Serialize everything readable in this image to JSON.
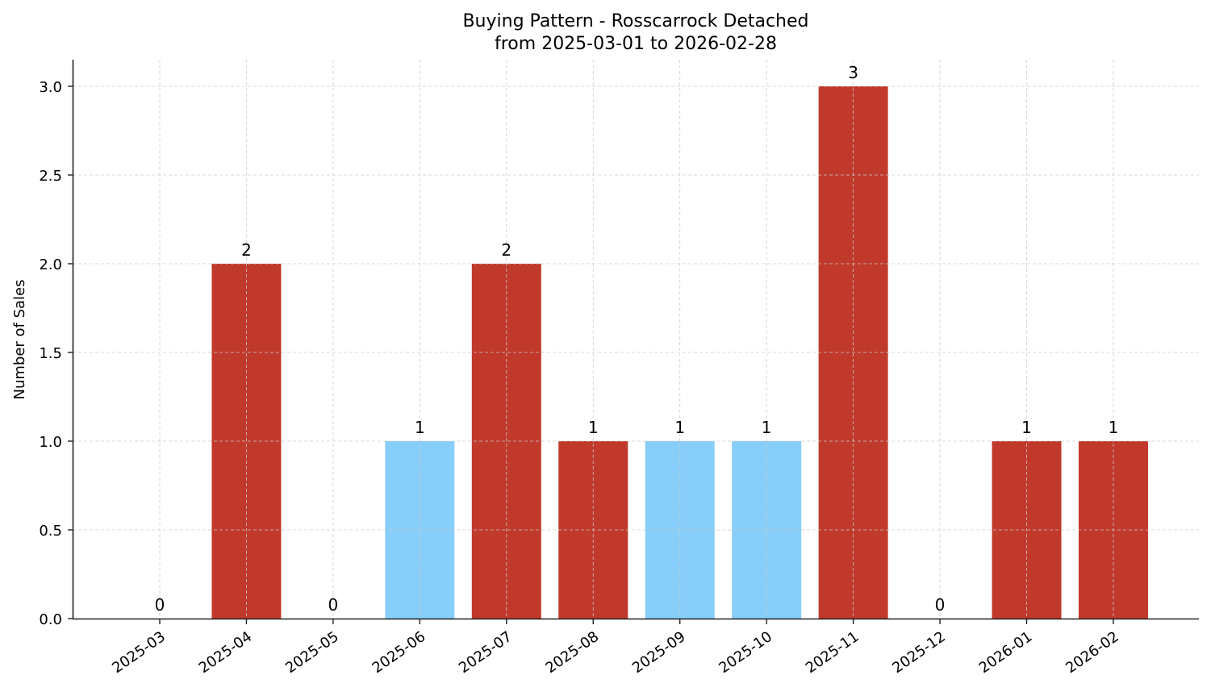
{
  "chart_data": {
    "type": "bar",
    "title": "Buying Pattern - Rosscarrock Detached",
    "subtitle": "from 2025-03-01 to 2026-02-28",
    "xlabel": "",
    "ylabel": "Number of Sales",
    "categories": [
      "2025-03",
      "2025-04",
      "2025-05",
      "2025-06",
      "2025-07",
      "2025-08",
      "2025-09",
      "2025-10",
      "2025-11",
      "2025-12",
      "2026-01",
      "2026-02"
    ],
    "values": [
      0,
      2,
      0,
      1,
      2,
      1,
      1,
      1,
      3,
      0,
      1,
      1
    ],
    "bar_colors": [
      "#c0392b",
      "#c0392b",
      "#c0392b",
      "#87cefa",
      "#c0392b",
      "#c0392b",
      "#87cefa",
      "#87cefa",
      "#c0392b",
      "#c0392b",
      "#c0392b",
      "#c0392b"
    ],
    "data_labels": [
      "0",
      "2",
      "0",
      "1",
      "2",
      "1",
      "1",
      "1",
      "3",
      "0",
      "1",
      "1"
    ],
    "ylim": [
      0,
      3.15
    ],
    "yticks": [
      0.0,
      0.5,
      1.0,
      1.5,
      2.0,
      2.5,
      3.0
    ],
    "ytick_labels": [
      "0.0",
      "0.5",
      "1.0",
      "1.5",
      "2.0",
      "2.5",
      "3.0"
    ],
    "grid": true,
    "grid_style": "dashed",
    "legend": null,
    "xtick_rotation": 35
  }
}
